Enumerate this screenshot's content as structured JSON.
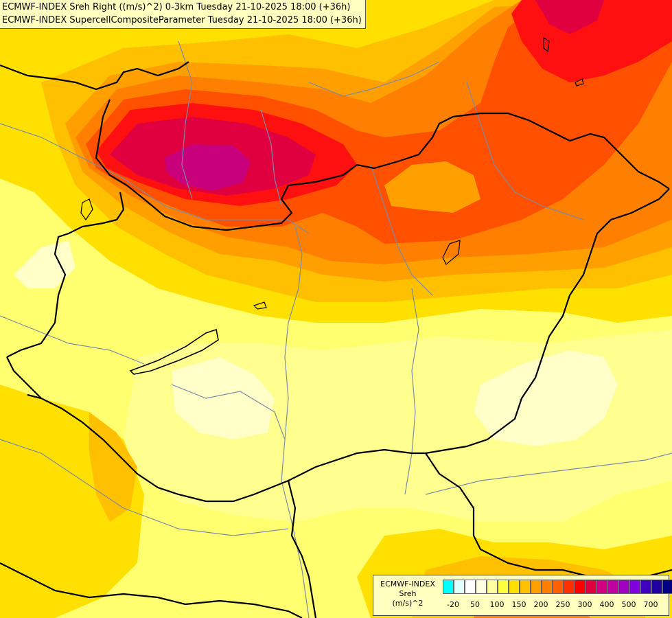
{
  "header": {
    "line1": "ECMWF-INDEX Sreh Right ((m/s)^2) 0-3km Tuesday 21-10-2025 18:00 (+36h)",
    "line2": "ECMWF-INDEX SupercellCompositeParameter Tuesday 21-10-2025 18:00 (+36h)"
  },
  "legend": {
    "title1": "ECMWF-INDEX",
    "title2": "Sreh",
    "title3": "(m/s)^2",
    "colors": [
      "#00ffff",
      "#e0ffff",
      "#ffffff",
      "#ffffe0",
      "#ffffa0",
      "#ffff40",
      "#ffe000",
      "#ffc000",
      "#ffa000",
      "#ff8000",
      "#ff6000",
      "#ff3000",
      "#ff0000",
      "#e00040",
      "#d00080",
      "#c000a0",
      "#a000c0",
      "#8000e0",
      "#4000c0",
      "#2000a0",
      "#000080"
    ],
    "ticks": [
      "-20",
      "50",
      "100",
      "150",
      "200",
      "250",
      "300",
      "400",
      "500",
      "700"
    ]
  },
  "map": {
    "field_colors": {
      "palest": "#ffffc8",
      "pale": "#ffff90",
      "yellow": "#ffff40",
      "gold": "#ffe000",
      "amber": "#ffc000",
      "orange": "#ffa000",
      "dark_orange": "#ff8000",
      "red_orange": "#ff5000",
      "red": "#ff1010",
      "crimson": "#e00040",
      "magenta": "#c8007c"
    },
    "border_color": "#000000",
    "river_color": "#7a8aa8"
  }
}
